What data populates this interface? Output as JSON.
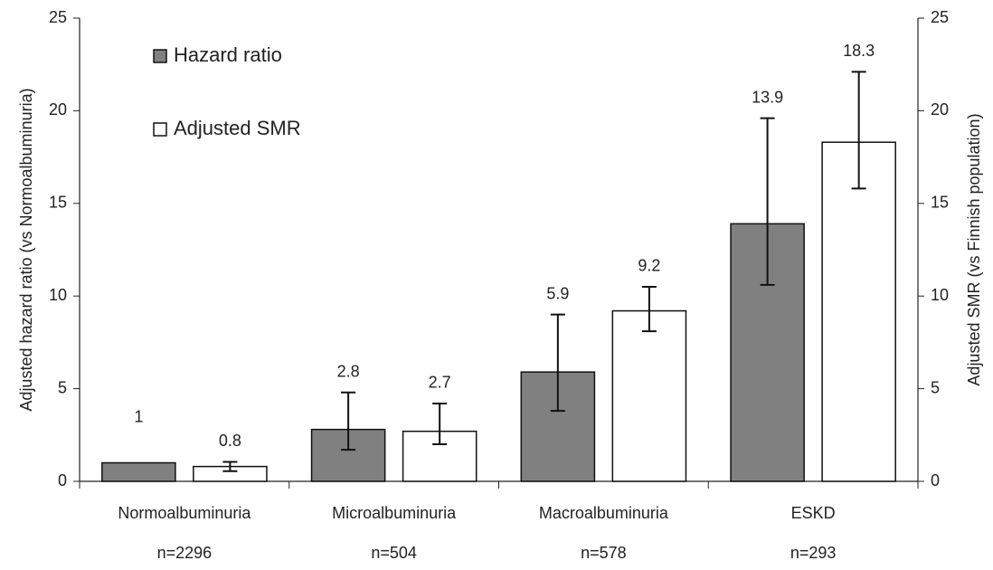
{
  "chart_data": {
    "type": "bar",
    "categories": [
      "Normoalbuminuria",
      "Microalbuminuria",
      "Macroalbuminuria",
      "ESKD"
    ],
    "category_sublabels": [
      "n=2296",
      "n=504",
      "n=578",
      "n=293"
    ],
    "y_label": "Adjusted hazard ratio (vs Normoalbuminuria)",
    "y2_label": "Adjusted SMR (vs Finnish population)",
    "ylim": [
      0,
      25
    ],
    "yticks": [
      0,
      5,
      10,
      15,
      20,
      25
    ],
    "y2lim": [
      0,
      25
    ],
    "y2ticks": [
      0,
      5,
      10,
      15,
      20,
      25
    ],
    "legend": "top-left",
    "series": [
      {
        "name": "Hazard ratio",
        "color": "#808080",
        "values": [
          1,
          2.8,
          5.9,
          13.9
        ],
        "lower": [
          null,
          1.7,
          3.8,
          10.6
        ],
        "upper": [
          null,
          4.8,
          9.0,
          19.6
        ]
      },
      {
        "name": "Adjusted SMR",
        "color": "#ffffff",
        "axis": "y2",
        "values": [
          0.8,
          2.7,
          9.2,
          18.3
        ],
        "lower": [
          0.55,
          2.0,
          8.1,
          15.8
        ],
        "upper": [
          1.05,
          4.2,
          10.5,
          22.1
        ]
      }
    ]
  }
}
